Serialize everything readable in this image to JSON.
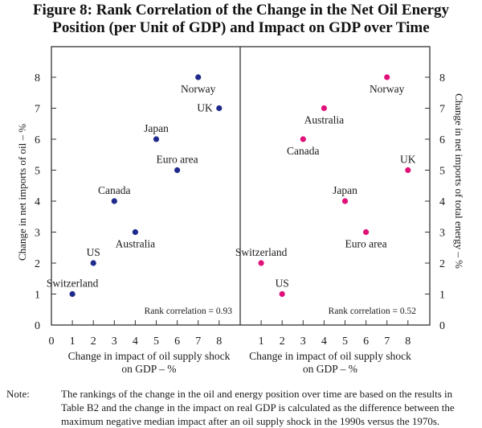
{
  "figure": {
    "title_line1": "Figure 8: Rank Correlation of the Change in the Net Oil Energy",
    "title_line2": "Position (per Unit of GDP) and Impact on GDP over Time"
  },
  "colors": {
    "left_series": "#1f2a8c",
    "right_series": "#e0117a",
    "axis": "#333333"
  },
  "chart_data": [
    {
      "type": "scatter",
      "panel": "left",
      "title": "",
      "xlabel_line1": "Change in impact of oil supply shock",
      "xlabel_line2": "on GDP – %",
      "ylabel": "Change in net imports of oil – %",
      "xlim": [
        0,
        9
      ],
      "ylim": [
        0,
        9
      ],
      "xticks": [
        0,
        1,
        2,
        3,
        4,
        5,
        6,
        7,
        8
      ],
      "yticks": [
        0,
        1,
        2,
        3,
        4,
        5,
        6,
        7,
        8
      ],
      "yaxis_side": "left",
      "annotation": "Rank correlation = 0.93",
      "points": [
        {
          "label": "Switzerland",
          "x": 1,
          "y": 1,
          "label_pos": "above"
        },
        {
          "label": "US",
          "x": 2,
          "y": 2,
          "label_pos": "above"
        },
        {
          "label": "Canada",
          "x": 3,
          "y": 4,
          "label_pos": "above"
        },
        {
          "label": "Australia",
          "x": 4,
          "y": 3,
          "label_pos": "below"
        },
        {
          "label": "Japan",
          "x": 5,
          "y": 6,
          "label_pos": "above"
        },
        {
          "label": "Euro area",
          "x": 6,
          "y": 5,
          "label_pos": "above"
        },
        {
          "label": "Norway",
          "x": 7,
          "y": 8,
          "label_pos": "below"
        },
        {
          "label": "UK",
          "x": 8,
          "y": 7,
          "label_pos": "left"
        }
      ]
    },
    {
      "type": "scatter",
      "panel": "right",
      "title": "",
      "xlabel_line1": "Change in impact of oil supply shock",
      "xlabel_line2": "on GDP – %",
      "ylabel": "Change in net imports of total energy – %",
      "xlim": [
        0,
        9
      ],
      "ylim": [
        0,
        9
      ],
      "xticks": [
        1,
        2,
        3,
        4,
        5,
        6,
        7,
        8
      ],
      "yticks": [
        0,
        1,
        2,
        3,
        4,
        5,
        6,
        7,
        8
      ],
      "yaxis_side": "right",
      "annotation": "Rank correlation = 0.52",
      "points": [
        {
          "label": "Switzerland",
          "x": 1,
          "y": 2,
          "label_pos": "above"
        },
        {
          "label": "US",
          "x": 2,
          "y": 1,
          "label_pos": "above"
        },
        {
          "label": "Canada",
          "x": 3,
          "y": 6,
          "label_pos": "below"
        },
        {
          "label": "Australia",
          "x": 4,
          "y": 7,
          "label_pos": "below"
        },
        {
          "label": "Japan",
          "x": 5,
          "y": 4,
          "label_pos": "above"
        },
        {
          "label": "Euro area",
          "x": 6,
          "y": 3,
          "label_pos": "below"
        },
        {
          "label": "Norway",
          "x": 7,
          "y": 8,
          "label_pos": "below"
        },
        {
          "label": "UK",
          "x": 8,
          "y": 5,
          "label_pos": "above"
        }
      ]
    }
  ],
  "note": {
    "label": "Note:",
    "lines": [
      "The rankings of the change in the oil and energy position over time are based on the results in",
      "Table B2 and the change in the impact on real GDP is calculated as the difference between the",
      "maximum negative median impact after an oil supply shock in the 1990s versus the 1970s."
    ]
  }
}
